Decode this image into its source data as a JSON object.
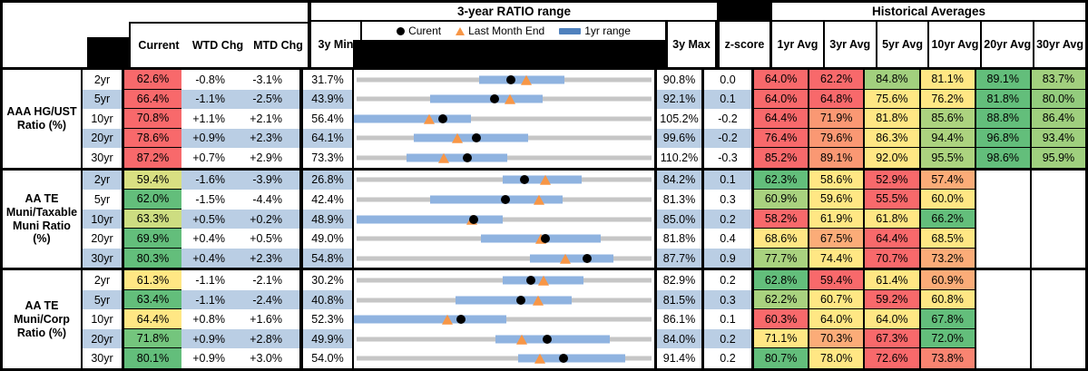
{
  "header": {
    "range_title": "3-year RATIO range",
    "hist_title": "Historical Averages",
    "legend": [
      {
        "icon": "current-dot",
        "label": "Curent"
      },
      {
        "icon": "last-month-triangle",
        "label": "Last Month End"
      },
      {
        "icon": "range-bar",
        "label": "1yr range"
      }
    ],
    "col_current": "Current",
    "col_wtd": "WTD Chg",
    "col_mtd": "MTD Chg",
    "col_min": "3y Min",
    "col_max": "3y Max",
    "col_z": "z-score",
    "avg_cols": [
      "1yr Avg",
      "3yr Avg",
      "5yr Avg",
      "10yr Avg",
      "20yr Avg",
      "30yr Avg"
    ]
  },
  "colors": {
    "band_blue": "#BACEE4",
    "bar_blue": "#8FB3E0",
    "legend_bar_blue": "#4F81BD",
    "track_gray": "#C6C6C6",
    "triangle_orange": "#F79646",
    "dot_black": "#000000",
    "scale_red": "#F8696B",
    "scale_orange": "#FBAC78",
    "scale_yellow": "#FFE784",
    "scale_green": "#63BE7B"
  },
  "chart_data": {
    "type": "table",
    "note": "bullet chart per row: axis spans 3y Min to 3y Max; dot=Current, triangle=Last Month End, bar=1yr range (fractions of axis)",
    "groups": [
      {
        "label": "AAA HG/UST Ratio (%)",
        "rows": [
          {
            "tenor": "2yr",
            "current": "62.6%",
            "current_bg": "#F8696B",
            "wtd": "-0.8%",
            "mtd": "-3.1%",
            "min": "31.7%",
            "max": "90.8%",
            "z": "0.0",
            "bar": [
              0.416,
              0.702
            ],
            "dot": 0.523,
            "tri": 0.575,
            "avgs": [
              [
                "64.0%",
                "#F8696B"
              ],
              [
                "62.2%",
                "#F8696B"
              ],
              [
                "84.8%",
                "#A2D07E"
              ],
              [
                "81.1%",
                "#FFE784"
              ],
              [
                "89.1%",
                "#63BE7B"
              ],
              [
                "83.7%",
                "#A2D07E"
              ]
            ]
          },
          {
            "tenor": "5yr",
            "current": "66.4%",
            "current_bg": "#F8696B",
            "wtd": "-1.1%",
            "mtd": "-2.5%",
            "min": "43.9%",
            "max": "92.1%",
            "z": "0.1",
            "bar": [
              0.253,
              0.629
            ],
            "dot": 0.467,
            "tri": 0.519,
            "avgs": [
              [
                "64.0%",
                "#F8696B"
              ],
              [
                "64.8%",
                "#F8696B"
              ],
              [
                "75.6%",
                "#FFE784"
              ],
              [
                "76.2%",
                "#FFE784"
              ],
              [
                "81.8%",
                "#63BE7B"
              ],
              [
                "80.0%",
                "#93CC7D"
              ]
            ]
          },
          {
            "tenor": "10yr",
            "current": "70.8%",
            "current_bg": "#F8696B",
            "wtd": "+1.1%",
            "mtd": "+2.1%",
            "min": "56.4%",
            "max": "105.2%",
            "z": "-0.2",
            "bar": [
              0.0,
              0.39
            ],
            "dot": 0.295,
            "tri": 0.252,
            "avgs": [
              [
                "64.4%",
                "#F8696B"
              ],
              [
                "71.9%",
                "#FA9873"
              ],
              [
                "81.8%",
                "#FFE784"
              ],
              [
                "85.6%",
                "#ACD37F"
              ],
              [
                "88.8%",
                "#63BE7B"
              ],
              [
                "86.4%",
                "#9FCF7E"
              ]
            ]
          },
          {
            "tenor": "20yr",
            "current": "78.6%",
            "current_bg": "#F8696B",
            "wtd": "+0.9%",
            "mtd": "+2.3%",
            "min": "64.1%",
            "max": "99.6%",
            "z": "-0.2",
            "bar": [
              0.199,
              0.58
            ],
            "dot": 0.408,
            "tri": 0.344,
            "avgs": [
              [
                "76.4%",
                "#F8696B"
              ],
              [
                "79.6%",
                "#FA9873"
              ],
              [
                "86.3%",
                "#FFE784"
              ],
              [
                "94.4%",
                "#ACD37F"
              ],
              [
                "96.8%",
                "#63BE7B"
              ],
              [
                "93.4%",
                "#9FCF7E"
              ]
            ]
          },
          {
            "tenor": "30yr",
            "current": "87.2%",
            "current_bg": "#F8696B",
            "wtd": "+0.7%",
            "mtd": "+2.9%",
            "min": "73.3%",
            "max": "110.2%",
            "z": "-0.3",
            "bar": [
              0.176,
              0.512
            ],
            "dot": 0.377,
            "tri": 0.298,
            "avgs": [
              [
                "85.2%",
                "#F8696B"
              ],
              [
                "89.1%",
                "#FA9873"
              ],
              [
                "92.0%",
                "#FFE784"
              ],
              [
                "95.5%",
                "#ACD37F"
              ],
              [
                "98.6%",
                "#63BE7B"
              ],
              [
                "95.9%",
                "#9FCF7E"
              ]
            ]
          }
        ]
      },
      {
        "label": "AA TE Muni/Taxable Muni Ratio (%)",
        "rows": [
          {
            "tenor": "2yr",
            "current": "59.4%",
            "current_bg": "#D9E082",
            "wtd": "-1.6%",
            "mtd": "-3.9%",
            "min": "26.8%",
            "max": "84.2%",
            "z": "0.1",
            "bar": [
              0.494,
              0.758
            ],
            "dot": 0.568,
            "tri": 0.636,
            "avgs": [
              [
                "62.3%",
                "#63BE7B"
              ],
              [
                "58.6%",
                "#FFE784"
              ],
              [
                "52.9%",
                "#F8696B"
              ],
              [
                "57.4%",
                "#FBAC78"
              ],
              null,
              null
            ]
          },
          {
            "tenor": "5yr",
            "current": "62.0%",
            "current_bg": "#63BE7B",
            "wtd": "-1.5%",
            "mtd": "-4.4%",
            "min": "42.4%",
            "max": "81.3%",
            "z": "0.3",
            "bar": [
              0.253,
              0.696
            ],
            "dot": 0.504,
            "tri": 0.617,
            "avgs": [
              [
                "60.9%",
                "#A9D27F"
              ],
              [
                "59.6%",
                "#FFE784"
              ],
              [
                "55.5%",
                "#F8696B"
              ],
              [
                "60.0%",
                "#FFE784"
              ],
              null,
              null
            ]
          },
          {
            "tenor": "10yr",
            "current": "63.3%",
            "current_bg": "#CDDD81",
            "wtd": "+0.5%",
            "mtd": "+0.2%",
            "min": "48.9%",
            "max": "85.0%",
            "z": "0.2",
            "bar": [
              0.01,
              0.494
            ],
            "dot": 0.399,
            "tri": 0.393,
            "avgs": [
              [
                "58.2%",
                "#F8696B"
              ],
              [
                "61.9%",
                "#FFE784"
              ],
              [
                "61.8%",
                "#FFE784"
              ],
              [
                "66.2%",
                "#63BE7B"
              ],
              null,
              null
            ]
          },
          {
            "tenor": "20yr",
            "current": "69.9%",
            "current_bg": "#63BE7B",
            "wtd": "+0.4%",
            "mtd": "+0.5%",
            "min": "49.0%",
            "max": "81.8%",
            "z": "0.4",
            "bar": [
              0.422,
              0.823
            ],
            "dot": 0.637,
            "tri": 0.622,
            "avgs": [
              [
                "68.6%",
                "#FFE784"
              ],
              [
                "67.5%",
                "#FBAC78"
              ],
              [
                "64.4%",
                "#F8696B"
              ],
              [
                "68.5%",
                "#FFE784"
              ],
              null,
              null
            ]
          },
          {
            "tenor": "30yr",
            "current": "80.3%",
            "current_bg": "#63BE7B",
            "wtd": "+0.4%",
            "mtd": "+2.3%",
            "min": "54.8%",
            "max": "87.7%",
            "z": "0.9",
            "bar": [
              0.587,
              0.863
            ],
            "dot": 0.775,
            "tri": 0.705,
            "avgs": [
              [
                "77.7%",
                "#A9D27F"
              ],
              [
                "74.4%",
                "#FFE784"
              ],
              [
                "70.7%",
                "#F8696B"
              ],
              [
                "73.2%",
                "#FBAC78"
              ],
              null,
              null
            ]
          }
        ]
      },
      {
        "label": "AA TE Muni/Corp Ratio (%)",
        "rows": [
          {
            "tenor": "2yr",
            "current": "61.3%",
            "current_bg": "#FFE784",
            "wtd": "-1.1%",
            "mtd": "-2.1%",
            "min": "30.2%",
            "max": "82.9%",
            "z": "0.2",
            "bar": [
              0.494,
              0.763
            ],
            "dot": 0.59,
            "tri": 0.63,
            "avgs": [
              [
                "62.8%",
                "#63BE7B"
              ],
              [
                "59.4%",
                "#F8696B"
              ],
              [
                "61.4%",
                "#FFE784"
              ],
              [
                "60.9%",
                "#FBAC78"
              ],
              null,
              null
            ]
          },
          {
            "tenor": "5yr",
            "current": "63.4%",
            "current_bg": "#63BE7B",
            "wtd": "-1.1%",
            "mtd": "-2.4%",
            "min": "40.8%",
            "max": "81.5%",
            "z": "0.3",
            "bar": [
              0.339,
              0.726
            ],
            "dot": 0.555,
            "tri": 0.614,
            "avgs": [
              [
                "62.2%",
                "#A9D27F"
              ],
              [
                "60.7%",
                "#FFE784"
              ],
              [
                "59.2%",
                "#F8696B"
              ],
              [
                "60.8%",
                "#FFE784"
              ],
              null,
              null
            ]
          },
          {
            "tenor": "10yr",
            "current": "64.4%",
            "current_bg": "#FFE784",
            "wtd": "+0.8%",
            "mtd": "+1.6%",
            "min": "52.3%",
            "max": "86.1%",
            "z": "0.1",
            "bar": [
              0.0,
              0.509
            ],
            "dot": 0.358,
            "tri": 0.311,
            "avgs": [
              [
                "60.3%",
                "#F8696B"
              ],
              [
                "64.0%",
                "#FFE784"
              ],
              [
                "64.0%",
                "#FFE784"
              ],
              [
                "67.8%",
                "#63BE7B"
              ],
              null,
              null
            ]
          },
          {
            "tenor": "20yr",
            "current": "71.8%",
            "current_bg": "#74C57D",
            "wtd": "+0.9%",
            "mtd": "+2.8%",
            "min": "49.9%",
            "max": "84.0%",
            "z": "0.2",
            "bar": [
              0.472,
              0.851
            ],
            "dot": 0.642,
            "tri": 0.56,
            "avgs": [
              [
                "71.1%",
                "#FFE784"
              ],
              [
                "70.3%",
                "#FBAC78"
              ],
              [
                "67.3%",
                "#F8696B"
              ],
              [
                "72.0%",
                "#63BE7B"
              ],
              null,
              null
            ]
          },
          {
            "tenor": "30yr",
            "current": "80.1%",
            "current_bg": "#63BE7B",
            "wtd": "+0.9%",
            "mtd": "+3.0%",
            "min": "54.0%",
            "max": "91.4%",
            "z": "0.2",
            "bar": [
              0.547,
              0.903
            ],
            "dot": 0.698,
            "tri": 0.618,
            "avgs": [
              [
                "80.7%",
                "#63BE7B"
              ],
              [
                "78.0%",
                "#FFE784"
              ],
              [
                "72.6%",
                "#F8696B"
              ],
              [
                "73.8%",
                "#F98471"
              ],
              null,
              null
            ]
          }
        ]
      }
    ]
  }
}
